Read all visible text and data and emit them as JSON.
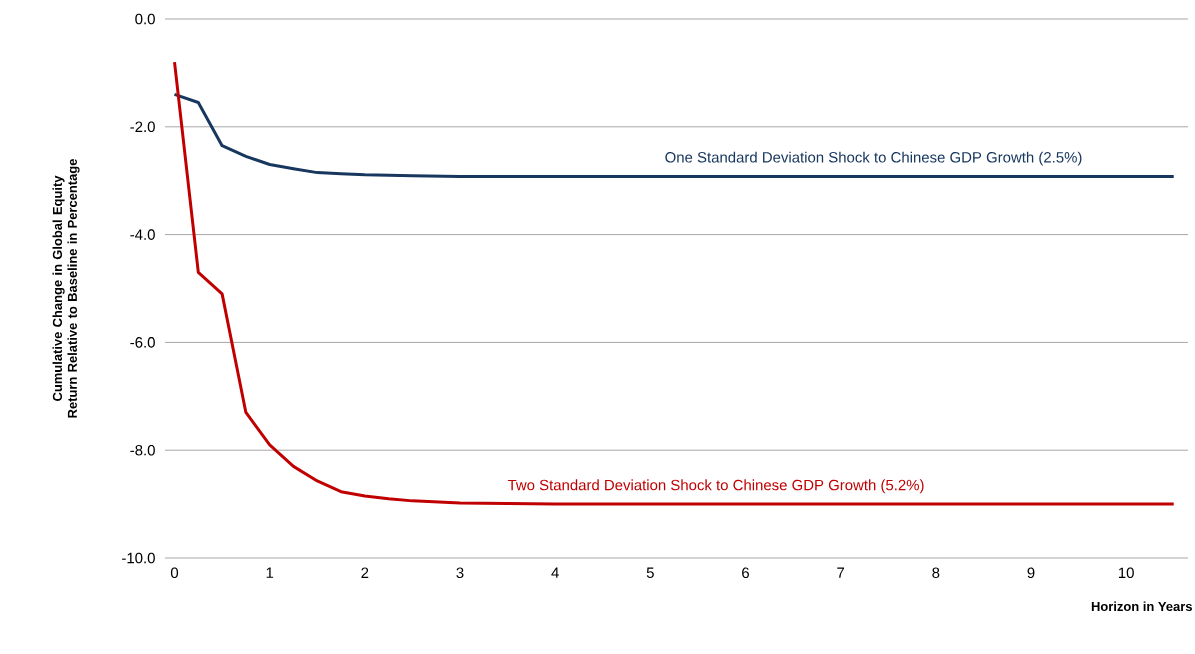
{
  "chart_data": {
    "type": "line",
    "xlabel": "Horizon in Years",
    "ylabel": "Cumulative Change in Global Equity Return Relative to Baseline in Percentage",
    "x": [
      0,
      0.25,
      0.5,
      0.75,
      1,
      1.25,
      1.5,
      1.75,
      2,
      2.25,
      2.5,
      3,
      3.5,
      4,
      5,
      6,
      7,
      8,
      9,
      10,
      10.5
    ],
    "series": [
      {
        "name": "One Standard Deviation Shock to Chinese GDP Growth (2.5%)",
        "color": "#17375e",
        "values": [
          -1.4,
          -1.55,
          -2.35,
          -2.55,
          -2.7,
          -2.78,
          -2.85,
          -2.87,
          -2.89,
          -2.9,
          -2.91,
          -2.92,
          -2.92,
          -2.92,
          -2.92,
          -2.92,
          -2.92,
          -2.92,
          -2.92,
          -2.92,
          -2.92
        ]
      },
      {
        "name": "Two Standard Deviation Shock to Chinese GDP Growth (5.2%)",
        "color": "#c00000",
        "values": [
          -0.8,
          -4.7,
          -5.1,
          -7.3,
          -7.9,
          -8.3,
          -8.57,
          -8.77,
          -8.85,
          -8.9,
          -8.94,
          -8.98,
          -8.99,
          -9.0,
          -9.0,
          -9.0,
          -9.0,
          -9.0,
          -9.0,
          -9.0,
          -9.0
        ]
      }
    ],
    "xlim": [
      -0.1,
      10.65
    ],
    "ylim": [
      -10,
      0
    ],
    "xticks": [
      0,
      1,
      2,
      3,
      4,
      5,
      6,
      7,
      8,
      9,
      10
    ],
    "yticks": [
      {
        "value": -10,
        "label": "-10.0"
      },
      {
        "value": -8,
        "label": "-8.0"
      },
      {
        "value": -6,
        "label": "-6.0"
      },
      {
        "value": -4,
        "label": "-4.0"
      },
      {
        "value": -2,
        "label": "-2.0"
      },
      {
        "value": 0,
        "label": "0.0"
      }
    ],
    "grid": "y",
    "marker": "none",
    "line_style": "solid"
  }
}
